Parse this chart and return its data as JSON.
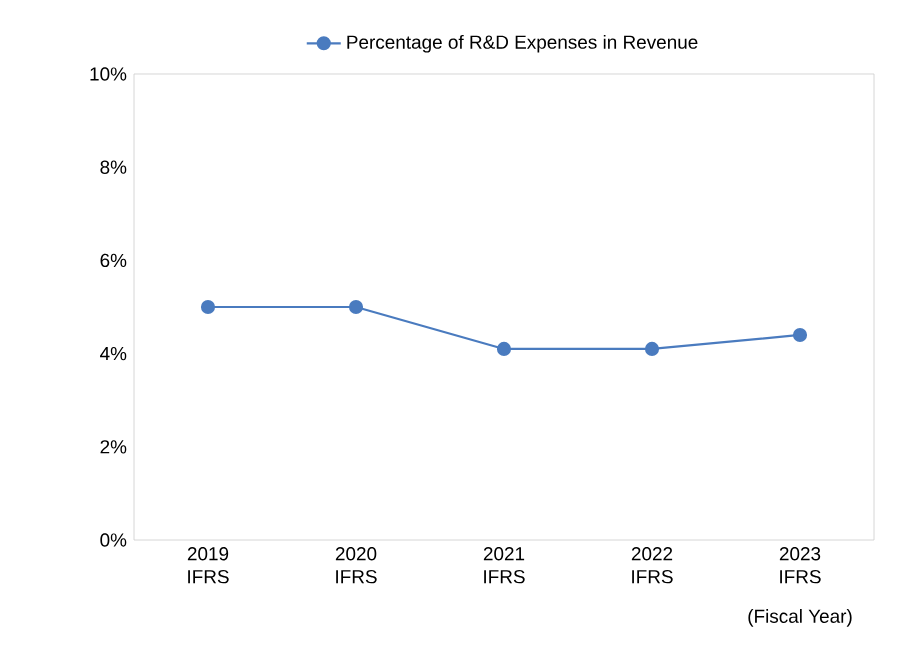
{
  "chart_data": {
    "type": "line",
    "xlabel": "(Fiscal Year)",
    "categories": [
      "2019 IFRS",
      "2020 IFRS",
      "2021 IFRS",
      "2022 IFRS",
      "2023 IFRS"
    ],
    "series": [
      {
        "name": "Percentage of R&D Expenses in Revenue",
        "color": "#4a7bbf",
        "values": [
          5.0,
          5.0,
          4.1,
          4.1,
          4.4
        ]
      }
    ],
    "ylim": [
      0,
      10
    ],
    "yticks": [
      {
        "value": 0,
        "label": "0%"
      },
      {
        "value": 2,
        "label": "2%"
      },
      {
        "value": 4,
        "label": "4%"
      },
      {
        "value": 6,
        "label": "6%"
      },
      {
        "value": 8,
        "label": "8%"
      },
      {
        "value": 10,
        "label": "10%"
      }
    ],
    "legend": "top",
    "marker": "circle",
    "line_style": "solid",
    "grid": false
  }
}
